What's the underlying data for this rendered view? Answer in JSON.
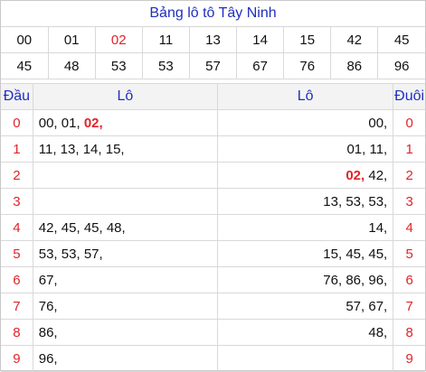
{
  "title": "Bảng lô tô Tây Ninh",
  "numbers_row1": [
    "00",
    "01",
    "02",
    "11",
    "13",
    "14",
    "15",
    "42",
    "45"
  ],
  "numbers_row2": [
    "45",
    "48",
    "53",
    "53",
    "57",
    "67",
    "76",
    "86",
    "96"
  ],
  "highlight_number": "02",
  "headers": {
    "dau": "Đầu",
    "lo_left": "Lô",
    "lo_right": "Lô",
    "duoi": "Đuôi"
  },
  "rows": [
    {
      "digit": "0",
      "left": [
        "00,",
        "01,",
        "02,"
      ],
      "right": [
        "00,"
      ]
    },
    {
      "digit": "1",
      "left": [
        "11,",
        "13,",
        "14,",
        "15,"
      ],
      "right": [
        "01,",
        "11,"
      ]
    },
    {
      "digit": "2",
      "left": [],
      "right": [
        "02,",
        "42,"
      ]
    },
    {
      "digit": "3",
      "left": [],
      "right": [
        "13,",
        "53,",
        "53,"
      ]
    },
    {
      "digit": "4",
      "left": [
        "42,",
        "45,",
        "45,",
        "48,"
      ],
      "right": [
        "14,"
      ]
    },
    {
      "digit": "5",
      "left": [
        "53,",
        "53,",
        "57,"
      ],
      "right": [
        "15,",
        "45,",
        "45,"
      ]
    },
    {
      "digit": "6",
      "left": [
        "67,"
      ],
      "right": [
        "76,",
        "86,",
        "96,"
      ]
    },
    {
      "digit": "7",
      "left": [
        "76,"
      ],
      "right": [
        "57,",
        "67,"
      ]
    },
    {
      "digit": "8",
      "left": [
        "86,"
      ],
      "right": [
        "48,"
      ]
    },
    {
      "digit": "9",
      "left": [
        "96,"
      ],
      "right": []
    }
  ]
}
